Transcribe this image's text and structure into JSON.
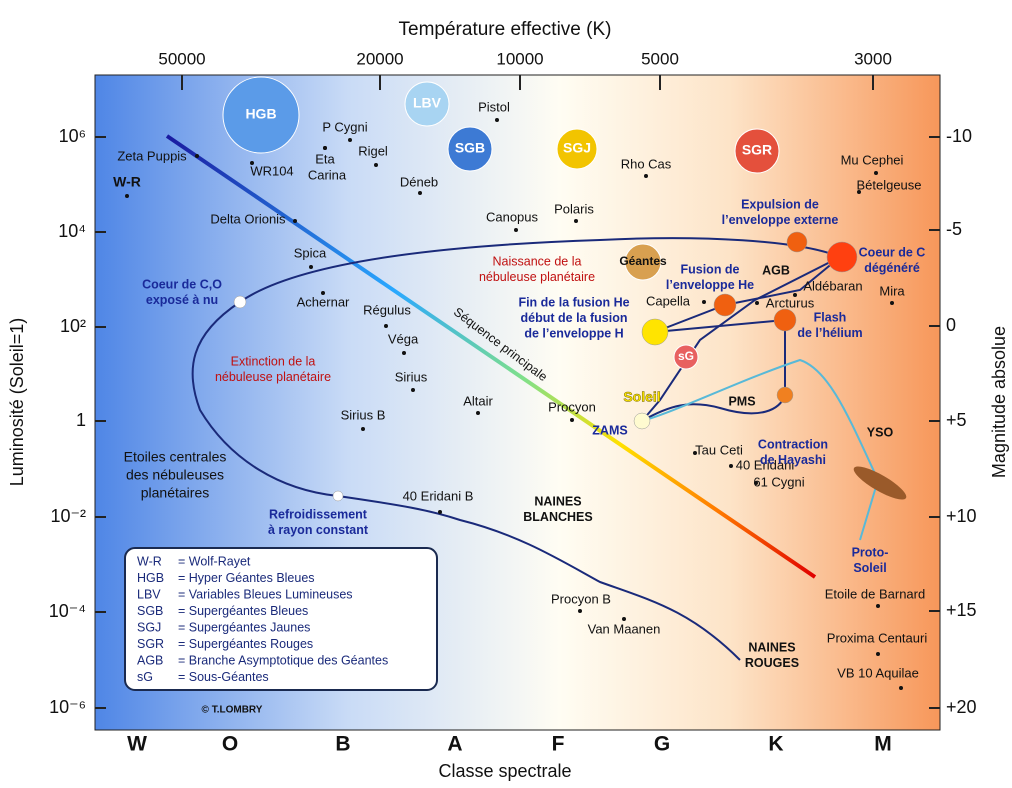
{
  "axes": {
    "top_title": "Température effective (K)",
    "top_ticks": [
      "50000",
      "20000",
      "10000",
      "5000",
      "3000"
    ],
    "bottom_title": "Classe spectrale",
    "bottom_ticks": [
      "W",
      "O",
      "B",
      "A",
      "F",
      "G",
      "K",
      "M"
    ],
    "left_title": "Luminosité (Soleil=1)",
    "left_ticks": [
      "10⁶",
      "10⁴",
      "10²",
      "1",
      "10⁻²",
      "10⁻⁴",
      "10⁻⁶"
    ],
    "right_title": "Magnitude absolue",
    "right_ticks": [
      "-10",
      "-5",
      "0",
      "+5",
      "+10",
      "+15",
      "+20"
    ]
  },
  "stars": [
    "Zeta Puppis",
    "W-R",
    "WR104",
    "P Cygni",
    "Eta",
    "Carina",
    "Rigel",
    "Pistol",
    "Déneb",
    "Delta Orionis",
    "Spica",
    "Achernar",
    "Régulus",
    "Véga",
    "Sirius",
    "Sirius B",
    "Altair",
    "Canopus",
    "Polaris",
    "Rho Cas",
    "Mu Cephei",
    "Bételgeuse",
    "Procyon",
    "Capella",
    "Aldébaran",
    "Arcturus",
    "Mira",
    "Tau Ceti",
    "40 Eridani",
    "61 Cygni",
    "40 Eridani B",
    "Procyon B",
    "Van Maanen",
    "Etoile de Barnard",
    "Proxima Centauri",
    "VB 10 Aquilae"
  ],
  "bubbles": [
    "HGB",
    "LBV",
    "SGB",
    "SGJ",
    "SGR",
    "Géantes",
    "sG"
  ],
  "annotations": [
    [
      "Coeur de C,O",
      "exposé à nu"
    ],
    [
      "Expulsion de",
      "l’enveloppe externe"
    ],
    [
      "Coeur de C",
      "dégénéré"
    ],
    [
      "Fusion de",
      "l’enveloppe He"
    ],
    [
      "Fin de la fusion He",
      "début de la fusion",
      "de l’enveloppe H"
    ],
    [
      "Flash",
      "de l’hélium"
    ],
    [
      "Contraction",
      "de Hayashi"
    ],
    [
      "YSO"
    ],
    [
      "Proto-",
      "Soleil"
    ],
    [
      "Refroidissement",
      "à rayon constant"
    ],
    [
      "ZAMS"
    ],
    [
      "AGB"
    ],
    [
      "PMS"
    ],
    [
      "Naissance de la",
      "nébuleuse planétaire"
    ],
    [
      "Extinction de la",
      "nébuleuse planétaire"
    ],
    [
      "Séquence principale"
    ],
    [
      "Etoiles centrales",
      "des nébuleuses",
      "planétaires"
    ],
    [
      "NAINES",
      "BLANCHES"
    ],
    [
      "NAINES",
      "ROUGES"
    ],
    [
      "Soleil"
    ]
  ],
  "legend": [
    [
      "W-R",
      "= Wolf-Rayet"
    ],
    [
      "HGB",
      "= Hyper Géantes Bleues"
    ],
    [
      "LBV",
      "= Variables Bleues Lumineuses"
    ],
    [
      "SGB",
      "= Supergéantes Bleues"
    ],
    [
      "SGJ",
      "= Supergéantes Jaunes"
    ],
    [
      "SGR",
      "= Supergéantes Rouges"
    ],
    [
      "AGB",
      "= Branche Asymptotique des Géantes"
    ],
    [
      "sG",
      "= Sous-Géantes"
    ]
  ],
  "credit": "© T.LOMBRY"
}
